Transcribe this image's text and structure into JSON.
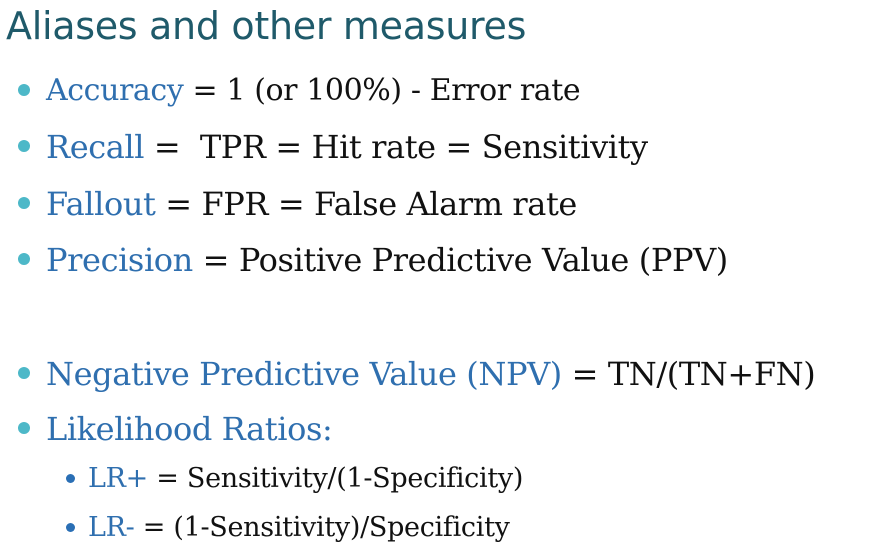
{
  "title": "Aliases and other measures",
  "bullets": [
    {
      "term": "Accuracy",
      "rest": " = 1 (or 100%) - Error rate"
    },
    {
      "term": "Recall",
      "rest": " =  TPR = Hit rate = Sensitivity"
    },
    {
      "term": "Fallout",
      "rest": " = FPR = False Alarm rate"
    },
    {
      "term": "Precision",
      "rest": " = Positive Predictive Value (PPV)"
    },
    {
      "term": "Negative Predictive Value (NPV)",
      "rest": " = TN/(TN+FN)"
    },
    {
      "term": "Likelihood Ratios:",
      "rest": ""
    }
  ],
  "sub_bullets": [
    {
      "term": "LR+",
      "rest": " = Sensitivity/(1-Specificity)"
    },
    {
      "term": "LR-",
      "rest": " = (1-Sensitivity)/Specificity"
    }
  ],
  "colors": {
    "title": "#1f5a6a",
    "term": "#2f6faf",
    "bullet_dot": "#4db8c8",
    "sub_bullet_dot": "#2a6fb5",
    "text": "#111111"
  }
}
